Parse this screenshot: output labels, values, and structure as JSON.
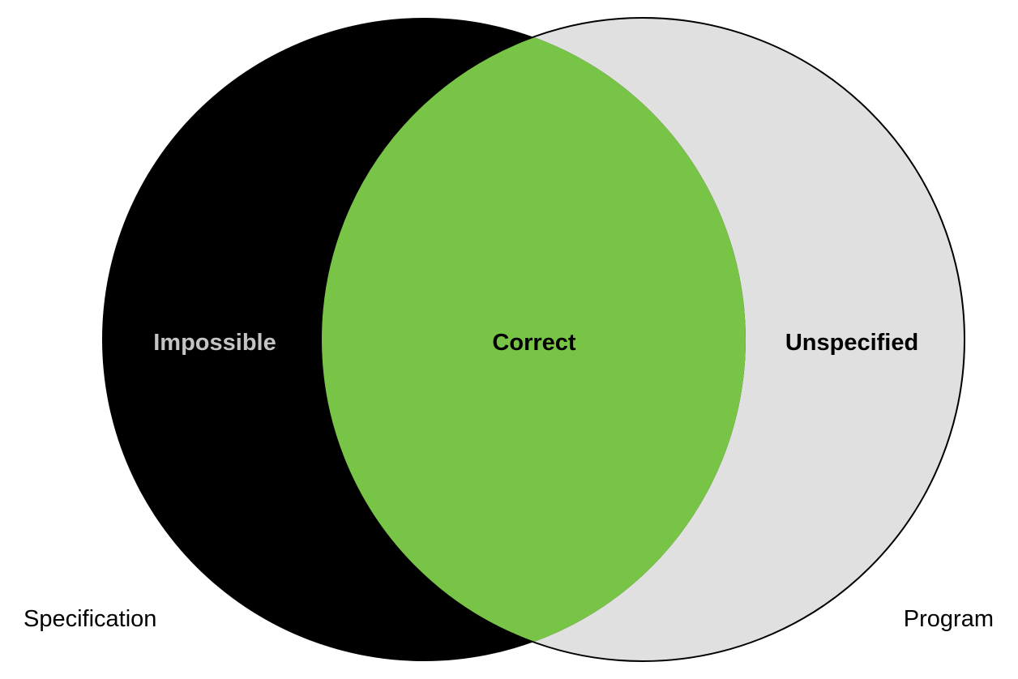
{
  "diagram": {
    "regions": {
      "left_only": {
        "label": "Impossible",
        "fill": "#000000",
        "text_color": "#c4c4c4"
      },
      "intersection": {
        "label": "Correct",
        "fill": "#78c447",
        "text_color": "#000000"
      },
      "right_only": {
        "label": "Unspecified",
        "fill": "#e0e0e0",
        "text_color": "#000000"
      }
    },
    "sets": {
      "left": {
        "label": "Specification"
      },
      "right": {
        "label": "Program"
      }
    },
    "outline_color": "#000000"
  }
}
